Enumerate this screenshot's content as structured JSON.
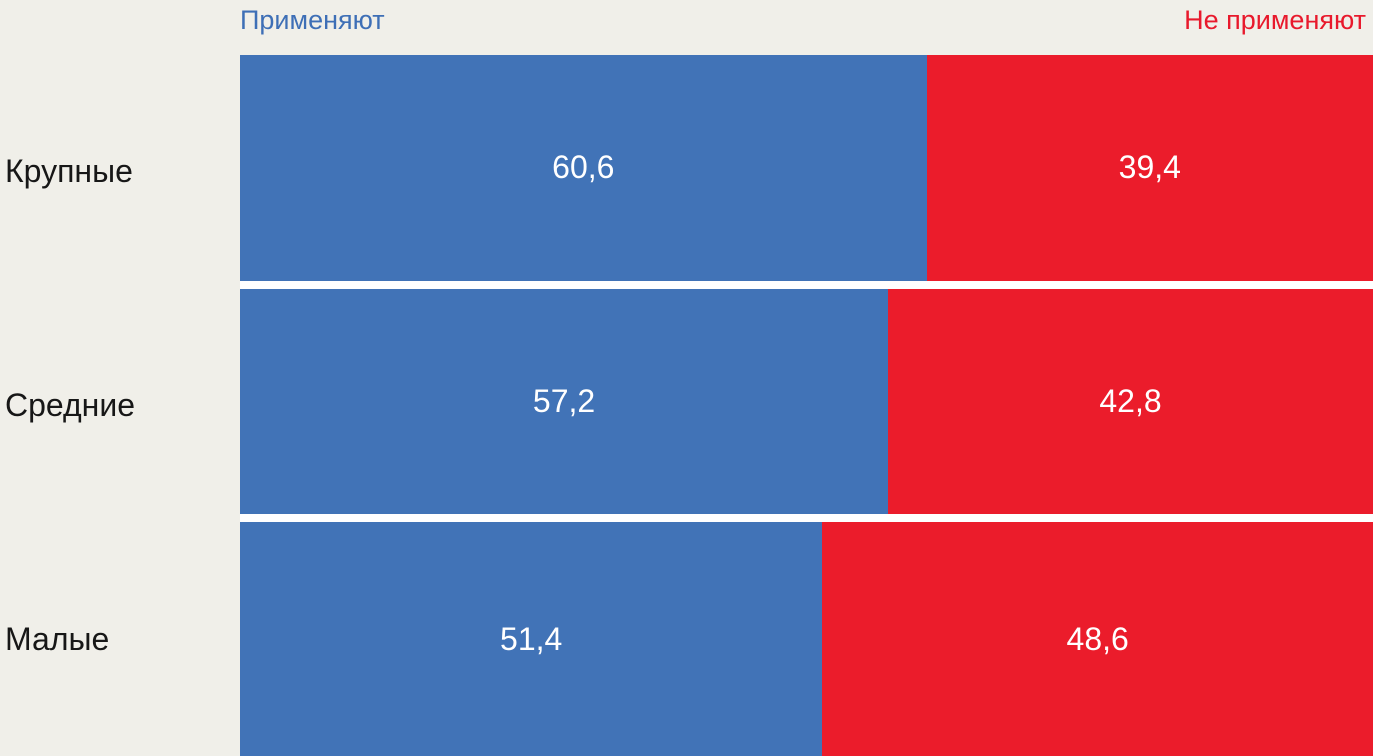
{
  "chart_data": {
    "type": "bar",
    "orientation": "horizontal",
    "stacked": true,
    "title": "",
    "xlabel": "",
    "ylabel": "",
    "xlim": [
      0,
      100
    ],
    "legend_position": "top",
    "grid": false,
    "categories": [
      "Крупные",
      "Средние",
      "Малые"
    ],
    "series": [
      {
        "name": "Применяют",
        "color": "#4173b7",
        "values": [
          60.6,
          57.2,
          51.4
        ]
      },
      {
        "name": "Не применяют",
        "color": "#eb1c2b",
        "values": [
          39.4,
          42.8,
          48.6
        ]
      }
    ],
    "value_labels": [
      [
        "60,6",
        "39,4"
      ],
      [
        "57,2",
        "42,8"
      ],
      [
        "51,4",
        "48,6"
      ]
    ]
  },
  "colors": {
    "background": "#f0efe9",
    "apply_bar": "#4173b7",
    "not_apply_bar": "#eb1c2b",
    "apply_legend_text": "#3e6fb6",
    "not_apply_legend_text": "#e8192c",
    "value_text": "#ffffff",
    "category_text": "#171717",
    "separator": "#ffffff"
  }
}
